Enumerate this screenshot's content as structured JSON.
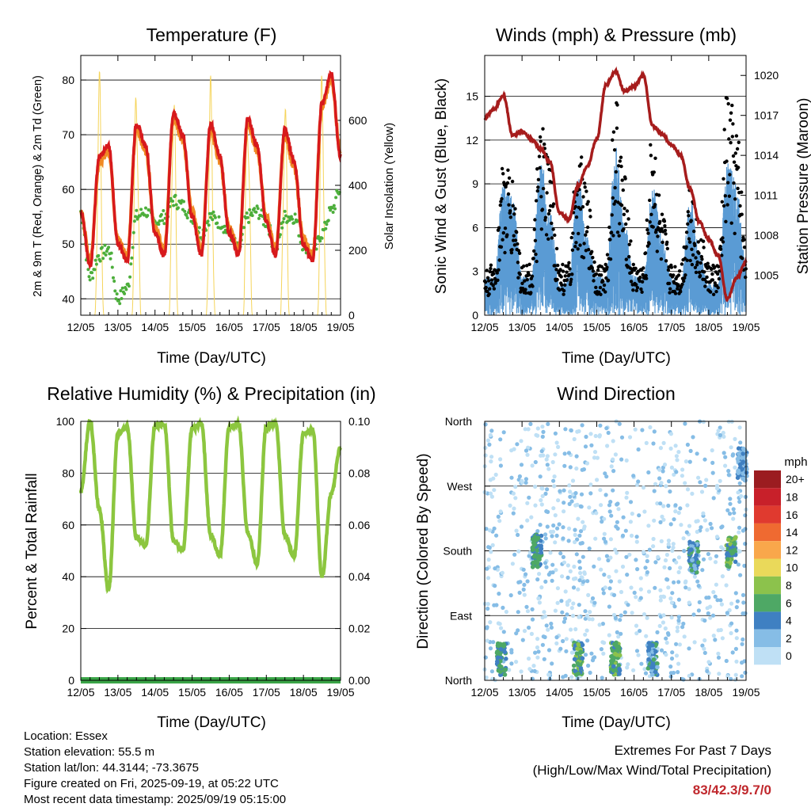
{
  "days": [
    "12/05",
    "13/05",
    "14/05",
    "15/05",
    "16/05",
    "17/05",
    "18/05",
    "19/05"
  ],
  "xlabel": "Time (Day/UTC)",
  "panels": {
    "temperature": {
      "title": "Temperature (F)",
      "ylabel_left": "2m & 9m T (Red, Orange) & 2m Td (Green)",
      "ylabel_right": "Solar Insolation (Yellow)",
      "left_ticks": [
        "40",
        "50",
        "60",
        "70",
        "80"
      ],
      "right_ticks": [
        "0",
        "200",
        "400",
        "600"
      ],
      "colors": {
        "t2m": "#d7191c",
        "t9m": "#f08a24",
        "td": "#4cae3b",
        "solar": "#f5d45a"
      }
    },
    "winds": {
      "title": "Winds (mph) & Pressure (mb)",
      "ylabel_left": "Sonic Wind & Gust (Blue, Black)",
      "ylabel_right": "Station Pressure (Maroon)",
      "left_ticks": [
        "0",
        "3",
        "6",
        "9",
        "12",
        "15"
      ],
      "right_ticks": [
        "1005",
        "1008",
        "1011",
        "1014",
        "1017",
        "1020"
      ],
      "colors": {
        "wind": "#5a9bd4",
        "gust": "#000000",
        "pressure": "#a61c1c"
      }
    },
    "humidity": {
      "title": "Relative Humidity (%) & Precipitation (in)",
      "ylabel_left": "Percent & Total Rainfall",
      "left_ticks": [
        "0",
        "20",
        "40",
        "60",
        "80",
        "100"
      ],
      "right_ticks": [
        "0.00",
        "0.02",
        "0.04",
        "0.06",
        "0.08",
        "0.10"
      ],
      "colors": {
        "rh": "#8cc63f",
        "precip": "#3aa447"
      }
    },
    "direction": {
      "title": "Wind Direction",
      "ylabel_left": "Direction (Colored By Speed)",
      "left_ticks": [
        "North",
        "East",
        "South",
        "West",
        "North"
      ],
      "legend_title": "mph",
      "legend_labels": [
        "20+",
        "18",
        "16",
        "14",
        "12",
        "10",
        "8",
        "6",
        "4",
        "2",
        "0"
      ],
      "legend_colors": [
        "#9b1c20",
        "#c8202a",
        "#e03a2f",
        "#ef6a31",
        "#f9a74b",
        "#ead95a",
        "#8cc24c",
        "#4ea865",
        "#3f80c2",
        "#86bde6",
        "#bfe0f5"
      ]
    }
  },
  "footer": {
    "location": "Location: Essex",
    "elevation": "Station elevation: 55.5 m",
    "latlon": "Station lat/lon: 44.3144; -73.3675",
    "created": "Figure created on Fri, 2025-09-19, at 05:22 UTC",
    "recent": "Most recent data timestamp: 2025/09/19 05:15:00"
  },
  "extremes": {
    "line1": "Extremes For Past 7 Days",
    "line2": "(High/Low/Max Wind/Total Precipitation)",
    "values": "83/42.3/9.7/0"
  },
  "chart_data": [
    {
      "type": "line",
      "title": "Temperature (F)",
      "xlabel": "Time (Day/UTC)",
      "ylabel": "2m & 9m T (Red, Orange) & 2m Td (Green)",
      "y2label": "Solar Insolation (Yellow)",
      "x": [
        0,
        0.25,
        0.5,
        0.75,
        1,
        1.25,
        1.5,
        1.75,
        2,
        2.25,
        2.5,
        2.75,
        3,
        3.25,
        3.5,
        3.75,
        4,
        4.25,
        4.5,
        4.75,
        5,
        5.25,
        5.5,
        5.75,
        6,
        6.25,
        6.5,
        6.75,
        7
      ],
      "x_unit": "days since 12/05 00 UTC",
      "ylim": [
        37,
        84.5
      ],
      "y2lim": [
        0,
        800
      ],
      "series": [
        {
          "name": "2m T",
          "axis": "left",
          "values": [
            56,
            46,
            66,
            68,
            50,
            47,
            72,
            68,
            52,
            48,
            74,
            70,
            55,
            48,
            72,
            66,
            52,
            48,
            73,
            68,
            54,
            48,
            71,
            65,
            50,
            47,
            76,
            81,
            66
          ]
        },
        {
          "name": "9m T",
          "axis": "left",
          "values": [
            56,
            47,
            65,
            67,
            51,
            48,
            71,
            67,
            53,
            49,
            73,
            69,
            56,
            49,
            71,
            65,
            53,
            49,
            72,
            67,
            55,
            49,
            70,
            64,
            51,
            48,
            75,
            80,
            67
          ]
        },
        {
          "name": "2m Td",
          "axis": "left",
          "values": [
            56,
            44,
            48,
            49,
            40,
            42,
            55,
            56,
            54,
            55,
            58,
            57,
            55,
            52,
            55,
            54,
            52,
            49,
            55,
            56,
            54,
            49,
            55,
            55,
            50,
            48,
            52,
            56,
            60
          ]
        },
        {
          "name": "Solar Insolation",
          "axis": "right",
          "values": [
            0,
            0,
            760,
            0,
            0,
            0,
            780,
            0,
            0,
            0,
            780,
            0,
            0,
            0,
            740,
            0,
            0,
            0,
            730,
            0,
            0,
            0,
            700,
            0,
            0,
            0,
            760,
            0,
            0
          ]
        }
      ]
    },
    {
      "type": "line",
      "title": "Winds (mph) & Pressure (mb)",
      "xlabel": "Time (Day/UTC)",
      "ylabel": "Sonic Wind & Gust (Blue, Black)",
      "y2label": "Station Pressure (Maroon)",
      "x": [
        0,
        0.25,
        0.5,
        0.75,
        1,
        1.25,
        1.5,
        1.75,
        2,
        2.25,
        2.5,
        2.75,
        3,
        3.25,
        3.5,
        3.75,
        4,
        4.25,
        4.5,
        4.75,
        5,
        5.25,
        5.5,
        5.75,
        6,
        6.25,
        6.5,
        6.75,
        7
      ],
      "x_unit": "days since 12/05 00 UTC",
      "ylim": [
        0,
        17.8
      ],
      "y2lim": [
        1002,
        1021.5
      ],
      "series": [
        {
          "name": "Sonic Wind",
          "axis": "left",
          "values": [
            1.5,
            1.5,
            5,
            4.5,
            1.5,
            1.5,
            6,
            4,
            1.2,
            1.5,
            5.5,
            3,
            1.5,
            1.5,
            6.5,
            3.5,
            1.5,
            1.5,
            5,
            3,
            1.5,
            1.2,
            4.5,
            2.5,
            1.2,
            1.2,
            6,
            5,
            2
          ]
        },
        {
          "name": "Gust",
          "axis": "left",
          "values": [
            2.5,
            3,
            9,
            8,
            3,
            3,
            11,
            9,
            3,
            3,
            10,
            7,
            3,
            3,
            13,
            8,
            3,
            3,
            11,
            6,
            3,
            3,
            8,
            5,
            3,
            3,
            13,
            11,
            4
          ]
        },
        {
          "name": "Station Pressure",
          "axis": "right",
          "values": [
            1016.8,
            1017.5,
            1018.5,
            1015.5,
            1015.8,
            1015.2,
            1014.5,
            1013.5,
            1009.7,
            1009.2,
            1011.7,
            1013.2,
            1015.2,
            1019.3,
            1020.3,
            1018.8,
            1019.2,
            1020,
            1016.2,
            1015.6,
            1014.8,
            1014,
            1011.5,
            1009,
            1007.7,
            1006.5,
            1003.2,
            1004.8,
            1006
          ]
        }
      ]
    },
    {
      "type": "line",
      "title": "Relative Humidity (%) & Precipitation (in)",
      "xlabel": "Time (Day/UTC)",
      "ylabel": "Percent & Total Rainfall",
      "ylim": [
        0,
        100
      ],
      "y2lim": [
        0,
        0.1
      ],
      "x": [
        0,
        0.25,
        0.5,
        0.75,
        1,
        1.25,
        1.5,
        1.75,
        2,
        2.25,
        2.5,
        2.75,
        3,
        3.25,
        3.5,
        3.75,
        4,
        4.25,
        4.5,
        4.75,
        5,
        5.25,
        5.5,
        5.75,
        6,
        6.25,
        6.5,
        6.75,
        7
      ],
      "x_unit": "days since 12/05 00 UTC",
      "series": [
        {
          "name": "Relative Humidity",
          "axis": "left",
          "values": [
            73,
            100,
            66,
            35,
            95,
            98,
            55,
            52,
            98,
            99,
            54,
            50,
            97,
            99,
            56,
            48,
            98,
            99,
            57,
            45,
            98,
            99,
            56,
            48,
            95,
            97,
            40,
            72,
            90
          ]
        },
        {
          "name": "Total Precipitation",
          "axis": "right",
          "values": [
            0,
            0,
            0,
            0,
            0,
            0,
            0,
            0,
            0,
            0,
            0,
            0,
            0,
            0,
            0,
            0,
            0,
            0,
            0,
            0,
            0,
            0,
            0,
            0,
            0,
            0,
            0,
            0,
            0
          ]
        }
      ]
    },
    {
      "type": "scatter",
      "title": "Wind Direction",
      "xlabel": "Time (Day/UTC)",
      "ylabel": "Direction (Colored By Speed)",
      "categories_y": [
        "North",
        "East",
        "South",
        "West",
        "North"
      ],
      "ylim": [
        0,
        360
      ],
      "x_unit": "days since 12/05 00 UTC",
      "clusters": [
        {
          "x": 0.45,
          "dir": 30,
          "speed": 6
        },
        {
          "x": 1.4,
          "dir": 180,
          "speed": 6
        },
        {
          "x": 2.5,
          "dir": 30,
          "speed": 7
        },
        {
          "x": 3.5,
          "dir": 30,
          "speed": 7
        },
        {
          "x": 4.5,
          "dir": 30,
          "speed": 5
        },
        {
          "x": 5.6,
          "dir": 170,
          "speed": 5
        },
        {
          "x": 6.6,
          "dir": 180,
          "speed": 7
        },
        {
          "x": 6.9,
          "dir": 300,
          "speed": 4
        }
      ],
      "legend_title": "mph",
      "legend_labels": [
        "20+",
        "18",
        "16",
        "14",
        "12",
        "10",
        "8",
        "6",
        "4",
        "2",
        "0"
      ]
    }
  ]
}
